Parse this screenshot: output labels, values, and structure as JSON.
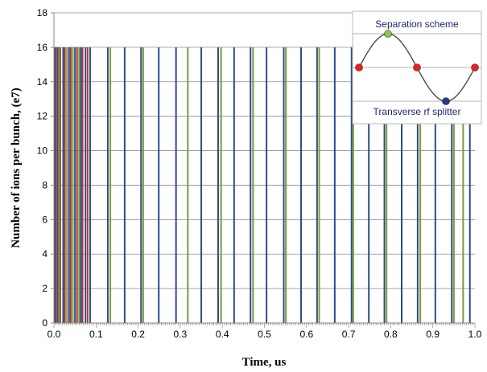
{
  "chart_data": {
    "type": "bar",
    "xlabel": "Time, us",
    "ylabel": "Number of ions per bunch, (e7)",
    "xlim": [
      0,
      1
    ],
    "ylim": [
      0,
      18
    ],
    "x_ticks": [
      "0.0",
      "0.1",
      "0.2",
      "0.3",
      "0.4",
      "0.5",
      "0.6",
      "0.7",
      "0.8",
      "0.9",
      "1.0"
    ],
    "y_ticks": [
      "0",
      "2",
      "4",
      "6",
      "8",
      "10",
      "12",
      "14",
      "16",
      "18"
    ],
    "grid": "horizontal",
    "series": [
      {
        "color": "#2e4c8c",
        "x": [
          0.002,
          0.009,
          0.022,
          0.036,
          0.05,
          0.064,
          0.075,
          0.086,
          0.128,
          0.168,
          0.207,
          0.249,
          0.29,
          0.35,
          0.39,
          0.428,
          0.467,
          0.505,
          0.546,
          0.587,
          0.625,
          0.667,
          0.707,
          0.748,
          0.785,
          0.826,
          0.864,
          0.906,
          0.945,
          0.988
        ],
        "values": [
          16,
          16,
          16,
          16,
          16,
          16,
          16,
          16,
          16,
          16,
          16,
          16,
          16,
          16,
          16,
          16,
          16,
          16,
          16,
          16,
          16,
          16,
          16,
          16,
          16,
          16,
          16,
          16,
          16,
          16
        ]
      },
      {
        "color": "#a83a34",
        "x": [
          0.005,
          0.015,
          0.026,
          0.04,
          0.055,
          0.068,
          0.08
        ],
        "values": [
          16,
          16,
          16,
          16,
          16,
          16,
          16
        ]
      },
      {
        "color": "#7c9a3a",
        "x": [
          0.012,
          0.031,
          0.045,
          0.06,
          0.134,
          0.212,
          0.318,
          0.397,
          0.473,
          0.551,
          0.63,
          0.711,
          0.79,
          0.87,
          0.95,
          0.972
        ],
        "values": [
          16,
          16,
          16,
          16,
          16,
          16,
          16,
          16,
          16,
          16,
          16,
          16,
          16,
          16,
          16,
          16
        ]
      }
    ],
    "inset": {
      "title": "Separation scheme",
      "caption": "Transverse rf splitter",
      "points": [
        {
          "color": "#e82020"
        },
        {
          "color": "#8cc63f"
        },
        {
          "color": "#e82020"
        },
        {
          "color": "#1f3c8c"
        },
        {
          "color": "#e82020"
        }
      ]
    }
  }
}
